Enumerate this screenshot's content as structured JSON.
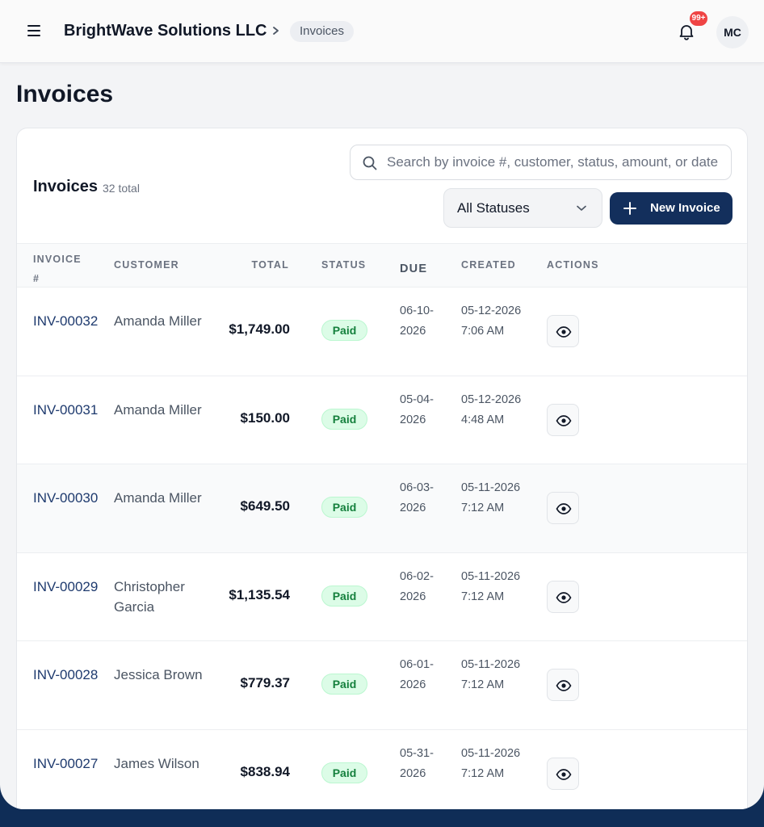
{
  "header": {
    "company": "BrightWave Solutions LLC",
    "breadcrumb": "Invoices",
    "notification_badge": "99+",
    "avatar_initials": "MC"
  },
  "page": {
    "title": "Invoices"
  },
  "card": {
    "title": "Invoices",
    "count": "32 total",
    "search_placeholder": "Search by invoice #, customer, status, amount, or date",
    "status_filter": "All Statuses",
    "new_button": "New Invoice"
  },
  "table": {
    "headers": {
      "invoice": "Invoice #",
      "customer": "Customer",
      "total": "Total",
      "status": "Status",
      "due": "Due",
      "created": "Created",
      "actions": "Actions"
    },
    "rows": [
      {
        "invoice": "INV-00032",
        "customer": "Amanda Miller",
        "total": "$1,749.00",
        "status": "Paid",
        "due": "06-10-2026",
        "created": "05-12-2026 7:06 AM"
      },
      {
        "invoice": "INV-00031",
        "customer": "Amanda Miller",
        "total": "$150.00",
        "status": "Paid",
        "due": "05-04-2026",
        "created": "05-12-2026 4:48 AM"
      },
      {
        "invoice": "INV-00030",
        "customer": "Amanda Miller",
        "total": "$649.50",
        "status": "Paid",
        "due": "06-03-2026",
        "created": "05-11-2026 7:12 AM"
      },
      {
        "invoice": "INV-00029",
        "customer": "Christopher Garcia",
        "total": "$1,135.54",
        "status": "Paid",
        "due": "06-02-2026",
        "created": "05-11-2026 7:12 AM"
      },
      {
        "invoice": "INV-00028",
        "customer": "Jessica Brown",
        "total": "$779.37",
        "status": "Paid",
        "due": "06-01-2026",
        "created": "05-11-2026 7:12 AM"
      },
      {
        "invoice": "INV-00027",
        "customer": "James Wilson",
        "total": "$838.94",
        "status": "Paid",
        "due": "05-31-2026",
        "created": "05-11-2026 7:12 AM"
      }
    ]
  },
  "colors": {
    "brand_navy": "#132f5c",
    "link": "#1e3a6e",
    "paid_bg": "#dcfce7",
    "paid_text": "#15803d",
    "badge": "#ef4444"
  },
  "icons": [
    "menu-icon",
    "chevron-right-icon",
    "bell-icon",
    "search-icon",
    "chevron-down-icon",
    "plus-icon",
    "eye-icon"
  ]
}
